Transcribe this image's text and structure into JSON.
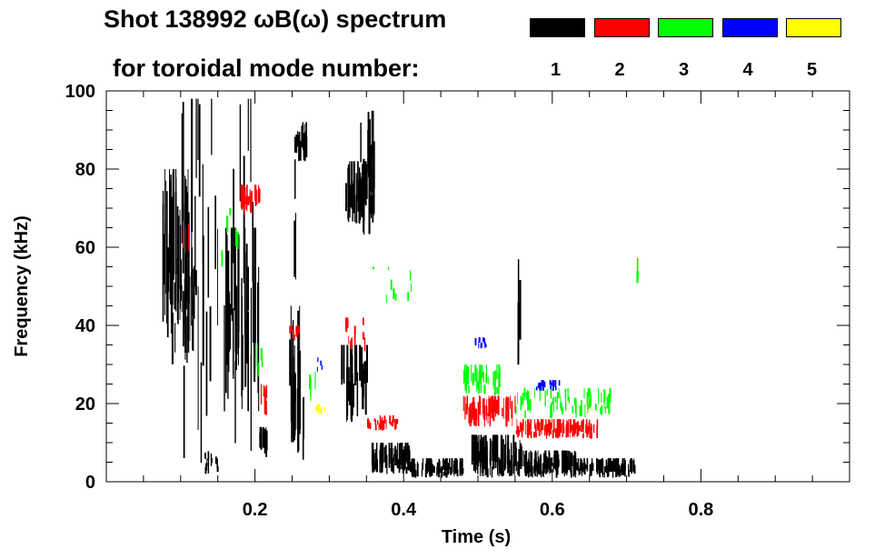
{
  "chart_data": {
    "type": "heatmap",
    "title_line1": "Shot 138992 ωB(ω) spectrum",
    "title_line2": "for toroidal mode number:",
    "xlabel": "Time (s)",
    "ylabel": "Frequency (kHz)",
    "xlim": [
      0,
      1.0
    ],
    "ylim": [
      0,
      100
    ],
    "xticks": [
      0.2,
      0.4,
      0.6,
      0.8
    ],
    "xtick_labels": [
      "0.2",
      "0.4",
      "0.6",
      "0.8"
    ],
    "yticks": [
      0,
      20,
      40,
      60,
      80,
      100
    ],
    "ytick_labels": [
      "0",
      "20",
      "40",
      "60",
      "80",
      "100"
    ],
    "legend": [
      {
        "label": "1",
        "color": "#000000"
      },
      {
        "label": "2",
        "color": "#ff0000"
      },
      {
        "label": "3",
        "color": "#00ff00"
      },
      {
        "label": "4",
        "color": "#0000ff"
      },
      {
        "label": "5",
        "color": "#ffff00"
      }
    ],
    "regions": [
      {
        "mode": 1,
        "t": [
          0.075,
          0.11
        ],
        "f": [
          40,
          80
        ],
        "density": 0.9
      },
      {
        "mode": 1,
        "t": [
          0.08,
          0.12
        ],
        "f": [
          30,
          60
        ],
        "density": 0.6
      },
      {
        "mode": 1,
        "t": [
          0.1,
          0.13
        ],
        "f": [
          2,
          98
        ],
        "density": 0.25
      },
      {
        "mode": 1,
        "t": [
          0.12,
          0.2
        ],
        "f": [
          5,
          98
        ],
        "density": 0.2
      },
      {
        "mode": 1,
        "t": [
          0.16,
          0.2
        ],
        "f": [
          20,
          65
        ],
        "density": 0.7
      },
      {
        "mode": 1,
        "t": [
          0.2,
          0.205
        ],
        "f": [
          5,
          70
        ],
        "density": 0.5
      },
      {
        "mode": 1,
        "t": [
          0.205,
          0.215
        ],
        "f": [
          6,
          14
        ],
        "density": 0.9
      },
      {
        "mode": 1,
        "t": [
          0.245,
          0.26
        ],
        "f": [
          10,
          45
        ],
        "density": 0.9
      },
      {
        "mode": 1,
        "t": [
          0.25,
          0.27
        ],
        "f": [
          82,
          92
        ],
        "density": 0.9
      },
      {
        "mode": 1,
        "t": [
          0.255,
          0.265
        ],
        "f": [
          5,
          25
        ],
        "density": 0.8
      },
      {
        "mode": 1,
        "t": [
          0.25,
          0.255
        ],
        "f": [
          50,
          100
        ],
        "density": 0.4
      },
      {
        "mode": 1,
        "t": [
          0.32,
          0.36
        ],
        "f": [
          66,
          82
        ],
        "density": 0.9
      },
      {
        "mode": 1,
        "t": [
          0.315,
          0.35
        ],
        "f": [
          15,
          35
        ],
        "density": 0.7
      },
      {
        "mode": 1,
        "t": [
          0.34,
          0.36
        ],
        "f": [
          62,
          96
        ],
        "density": 0.5
      },
      {
        "mode": 1,
        "t": [
          0.355,
          0.41
        ],
        "f": [
          2,
          10
        ],
        "density": 0.95
      },
      {
        "mode": 1,
        "t": [
          0.41,
          0.48
        ],
        "f": [
          1,
          6
        ],
        "density": 0.9
      },
      {
        "mode": 1,
        "t": [
          0.49,
          0.56
        ],
        "f": [
          1,
          12
        ],
        "density": 0.95
      },
      {
        "mode": 1,
        "t": [
          0.56,
          0.63
        ],
        "f": [
          1,
          8
        ],
        "density": 0.95
      },
      {
        "mode": 1,
        "t": [
          0.63,
          0.71
        ],
        "f": [
          1,
          6
        ],
        "density": 0.9
      },
      {
        "mode": 1,
        "t": [
          0.553,
          0.557
        ],
        "f": [
          15,
          68
        ],
        "density": 0.5
      },
      {
        "mode": 1,
        "t": [
          0.13,
          0.15
        ],
        "f": [
          2,
          8
        ],
        "density": 0.5
      },
      {
        "mode": 2,
        "t": [
          0.1,
          0.115
        ],
        "f": [
          58,
          80
        ],
        "density": 0.15
      },
      {
        "mode": 2,
        "t": [
          0.18,
          0.205
        ],
        "f": [
          68,
          76
        ],
        "density": 0.8
      },
      {
        "mode": 2,
        "t": [
          0.205,
          0.215
        ],
        "f": [
          15,
          25
        ],
        "density": 0.5
      },
      {
        "mode": 2,
        "t": [
          0.245,
          0.26
        ],
        "f": [
          36,
          40
        ],
        "density": 0.5
      },
      {
        "mode": 2,
        "t": [
          0.32,
          0.35
        ],
        "f": [
          33,
          42
        ],
        "density": 0.3
      },
      {
        "mode": 2,
        "t": [
          0.35,
          0.39
        ],
        "f": [
          13,
          17
        ],
        "density": 0.6
      },
      {
        "mode": 2,
        "t": [
          0.48,
          0.55
        ],
        "f": [
          14,
          22
        ],
        "density": 0.7
      },
      {
        "mode": 2,
        "t": [
          0.55,
          0.66
        ],
        "f": [
          11,
          16
        ],
        "density": 0.8
      },
      {
        "mode": 3,
        "t": [
          0.14,
          0.18
        ],
        "f": [
          50,
          70
        ],
        "density": 0.1
      },
      {
        "mode": 3,
        "t": [
          0.2,
          0.21
        ],
        "f": [
          25,
          38
        ],
        "density": 0.4
      },
      {
        "mode": 3,
        "t": [
          0.27,
          0.29
        ],
        "f": [
          15,
          30
        ],
        "density": 0.15
      },
      {
        "mode": 3,
        "t": [
          0.48,
          0.53
        ],
        "f": [
          22,
          30
        ],
        "density": 0.6
      },
      {
        "mode": 3,
        "t": [
          0.55,
          0.68
        ],
        "f": [
          16,
          24
        ],
        "density": 0.4
      },
      {
        "mode": 3,
        "t": [
          0.713,
          0.716
        ],
        "f": [
          50,
          58
        ],
        "density": 0.8
      },
      {
        "mode": 3,
        "t": [
          0.35,
          0.42
        ],
        "f": [
          45,
          55
        ],
        "density": 0.1
      },
      {
        "mode": 4,
        "t": [
          0.495,
          0.51
        ],
        "f": [
          34,
          37
        ],
        "density": 0.6
      },
      {
        "mode": 4,
        "t": [
          0.575,
          0.61
        ],
        "f": [
          23,
          26
        ],
        "density": 0.6
      },
      {
        "mode": 4,
        "t": [
          0.28,
          0.29
        ],
        "f": [
          28,
          32
        ],
        "density": 0.3
      },
      {
        "mode": 5,
        "t": [
          0.28,
          0.295
        ],
        "f": [
          17,
          20
        ],
        "density": 0.5
      }
    ]
  }
}
